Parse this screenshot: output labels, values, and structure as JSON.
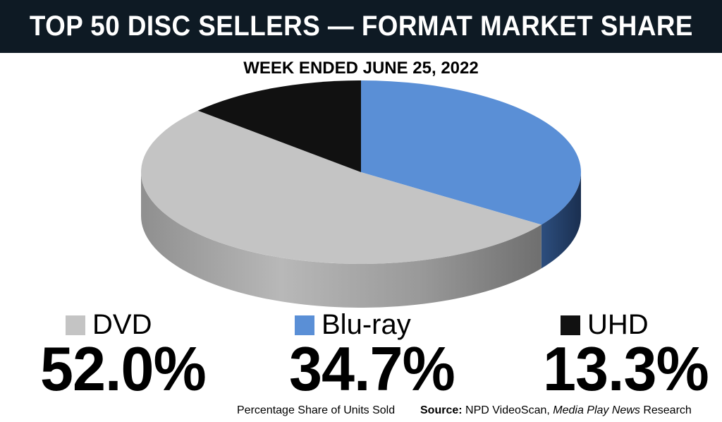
{
  "header": {
    "title": "TOP 50 DISC SELLERS — FORMAT MARKET SHARE",
    "subtitle": "WEEK ENDED JUNE 25, 2022"
  },
  "colors": {
    "title_bar": "#0e1a24",
    "dvd": "#c4c4c4",
    "bluray": "#5a8fd6",
    "uhd": "#111111"
  },
  "chart_data": {
    "type": "pie",
    "title": "TOP 50 DISC SELLERS — FORMAT MARKET SHARE",
    "subtitle": "WEEK ENDED JUNE 25, 2022",
    "slices": [
      {
        "label": "DVD",
        "value": 52.0,
        "display": "52.0%",
        "color": "#c4c4c4"
      },
      {
        "label": "Blu-ray",
        "value": 34.7,
        "display": "34.7%",
        "color": "#5a8fd6"
      },
      {
        "label": "UHD",
        "value": 13.3,
        "display": "13.3%",
        "color": "#111111"
      }
    ]
  },
  "footer": {
    "note": "Percentage Share of Units Sold",
    "source_label": "Source:",
    "source_text": "NPD VideoScan,",
    "source_publication": "Media Play News",
    "source_suffix": "Research"
  }
}
